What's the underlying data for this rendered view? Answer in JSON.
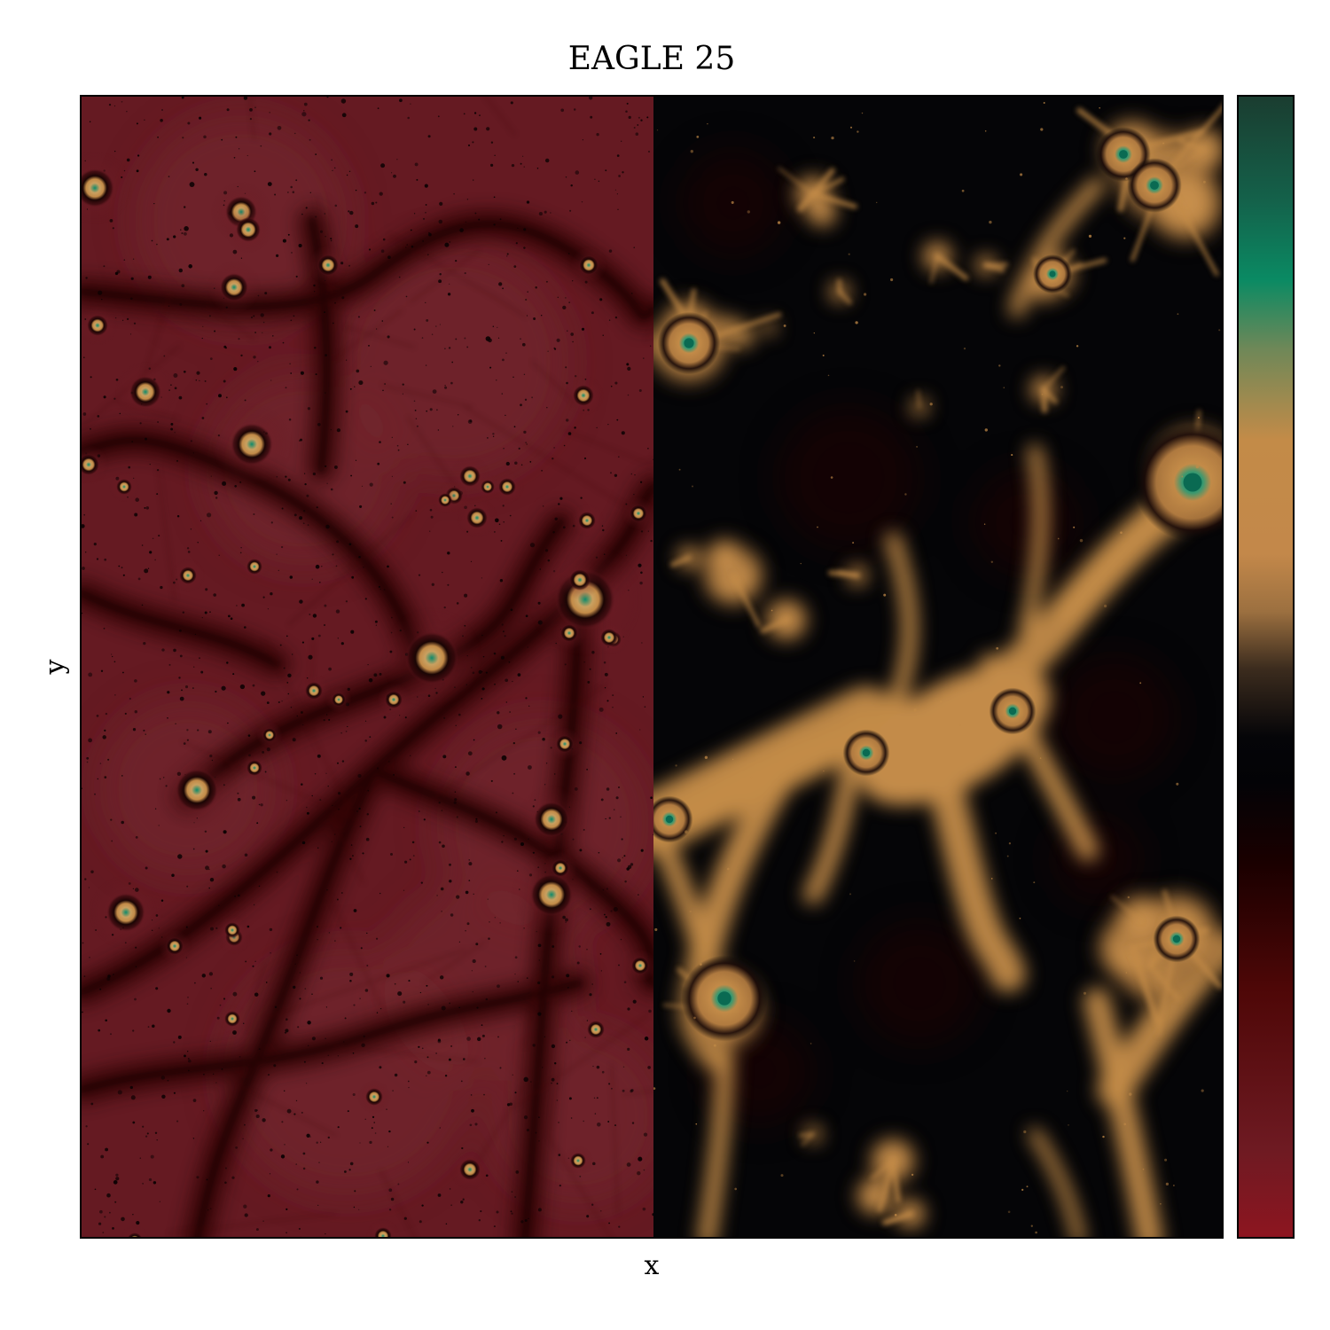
{
  "figure": {
    "title": "EAGLE 25",
    "xlabel": "x",
    "ylabel": "y"
  },
  "colors": {
    "left_background": "#651a22",
    "right_background": "#050507",
    "halo_gold": "#c38b48",
    "halo_core": "#0f8a6a",
    "colormap_stops": [
      "#8e1520",
      "#6e1a22",
      "#4e0707",
      "#1a0000",
      "#030306",
      "#050508",
      "#c3884a",
      "#c38b48",
      "#0a8a63",
      "#14614a",
      "#1a3d30"
    ]
  }
}
